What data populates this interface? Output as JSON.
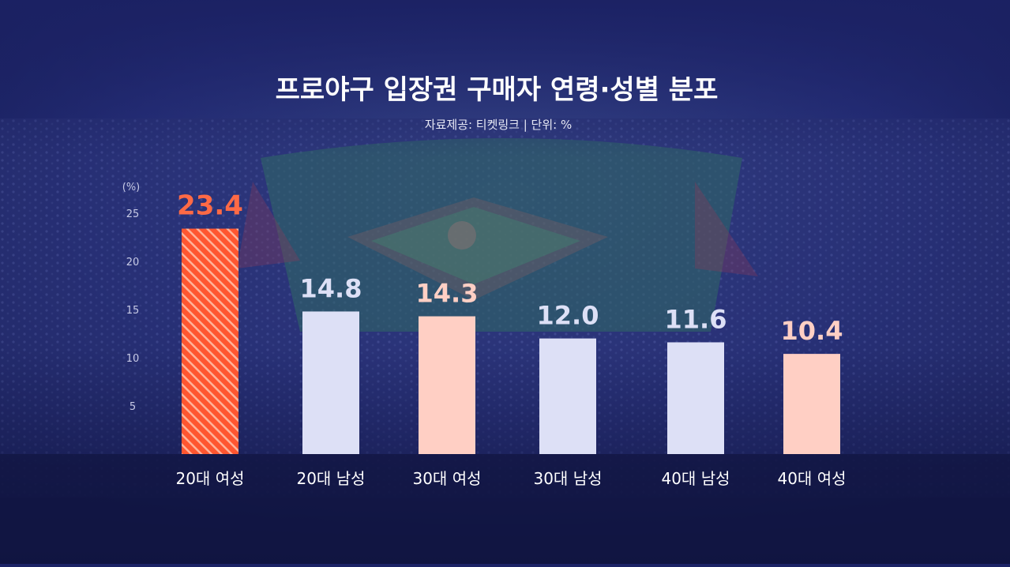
{
  "title": "프로야구 입장권 구매자 연령·성별 분포",
  "subtitle": "자료제공: 티켓링크 | 단위: %",
  "colors": {
    "female": "#ffcfc4",
    "male": "#dde0f6",
    "highlight": "#ff5a36",
    "highlight_label": "#ff6a45",
    "female_label": "#ffcfc4",
    "male_label": "#dde0f6",
    "background": "#1c2366"
  },
  "chart_data": {
    "type": "bar",
    "title": "프로야구 입장권 구매자 연령·성별 분포",
    "subtitle": "자료제공: 티켓링크 | 단위: %",
    "ylabel": "(%)",
    "ylim": [
      0,
      25
    ],
    "yticks": [
      5,
      10,
      15,
      20,
      25
    ],
    "grid": false,
    "categories": [
      "20대 여성",
      "20대 남성",
      "30대 여성",
      "30대 남성",
      "40대 남성",
      "40대 여성"
    ],
    "values": [
      23.4,
      14.8,
      14.3,
      12.0,
      11.6,
      10.4
    ],
    "value_labels": [
      "23.4",
      "14.8",
      "14.3",
      "12.0",
      "11.6",
      "10.4"
    ],
    "gender": [
      "female",
      "male",
      "female",
      "male",
      "male",
      "female"
    ],
    "highlight_index": 0
  }
}
